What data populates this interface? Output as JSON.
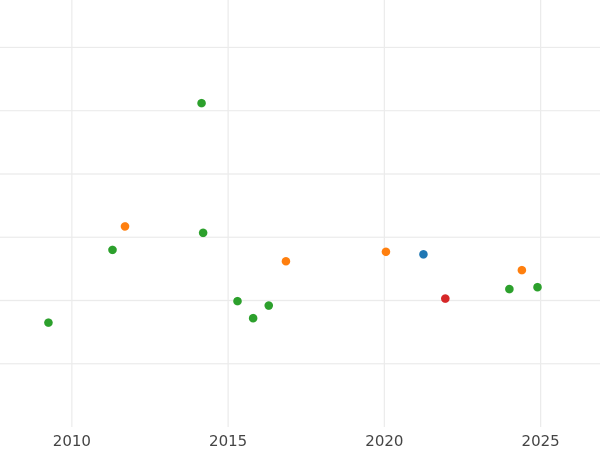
{
  "chart_data": {
    "type": "scatter",
    "title": "",
    "xlabel": "",
    "ylabel": "",
    "xlim": [
      2007.7,
      2026.9
    ],
    "ylim": [
      0,
      6.75
    ],
    "grid": true,
    "x_ticks": [
      2010,
      2015,
      2020,
      2025
    ],
    "x_tick_labels": [
      "2010",
      "2015",
      "2020",
      "2025"
    ],
    "y_gridlines": [
      1,
      2,
      3,
      4,
      5,
      6
    ],
    "points": [
      {
        "x": 2009.25,
        "y": 1.65,
        "color": "#2ca02c"
      },
      {
        "x": 2011.3,
        "y": 2.8,
        "color": "#2ca02c"
      },
      {
        "x": 2011.7,
        "y": 3.17,
        "color": "#ff7f0e"
      },
      {
        "x": 2014.15,
        "y": 5.12,
        "color": "#2ca02c"
      },
      {
        "x": 2014.2,
        "y": 3.07,
        "color": "#2ca02c"
      },
      {
        "x": 2015.3,
        "y": 1.99,
        "color": "#2ca02c"
      },
      {
        "x": 2015.8,
        "y": 1.72,
        "color": "#2ca02c"
      },
      {
        "x": 2016.3,
        "y": 1.92,
        "color": "#2ca02c"
      },
      {
        "x": 2016.85,
        "y": 2.62,
        "color": "#ff7f0e"
      },
      {
        "x": 2020.05,
        "y": 2.77,
        "color": "#ff7f0e"
      },
      {
        "x": 2021.25,
        "y": 2.73,
        "color": "#1f77b4"
      },
      {
        "x": 2021.95,
        "y": 2.03,
        "color": "#d62728"
      },
      {
        "x": 2024.0,
        "y": 2.18,
        "color": "#2ca02c"
      },
      {
        "x": 2024.4,
        "y": 2.48,
        "color": "#ff7f0e"
      },
      {
        "x": 2024.9,
        "y": 2.21,
        "color": "#2ca02c"
      }
    ]
  }
}
